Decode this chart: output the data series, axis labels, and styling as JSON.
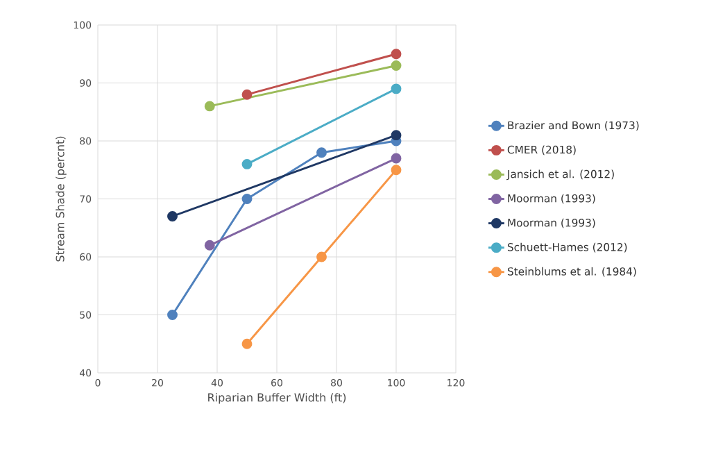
{
  "chart_data": {
    "type": "line",
    "xlabel": "Riparian Buffer Width (ft)",
    "ylabel": "Stream Shade (percnt)",
    "xlim": [
      0,
      120
    ],
    "xticks": [
      0,
      20,
      40,
      60,
      80,
      100,
      120
    ],
    "ylim": [
      40,
      100
    ],
    "yticks": [
      40,
      50,
      60,
      70,
      80,
      90,
      100
    ],
    "grid": true,
    "legend": "right",
    "marker": "circle",
    "line_style": "solid",
    "series": [
      {
        "name": "Brazier and Bown (1973)",
        "color": "#4f81bd",
        "x": [
          25,
          50,
          75,
          100
        ],
        "values": [
          50,
          70,
          78,
          80
        ]
      },
      {
        "name": "CMER (2018)",
        "color": "#c0504d",
        "x": [
          50,
          100
        ],
        "values": [
          88,
          95
        ]
      },
      {
        "name": "Jansich et al. (2012)",
        "color": "#9bbb59",
        "x": [
          37.5,
          100
        ],
        "values": [
          86,
          93
        ]
      },
      {
        "name": "Moorman (1993)",
        "color": "#8064a2",
        "x": [
          37.5,
          100
        ],
        "values": [
          62,
          77
        ]
      },
      {
        "name": "Moorman (1993)",
        "color": "#1f3864",
        "x": [
          25,
          100
        ],
        "values": [
          67,
          81
        ]
      },
      {
        "name": "Schuett-Hames (2012)",
        "color": "#4bacc6",
        "x": [
          50,
          100
        ],
        "values": [
          76,
          89
        ]
      },
      {
        "name": "Steinblums et al. (1984)",
        "color": "#f79646",
        "x": [
          50,
          75,
          100
        ],
        "values": [
          45,
          60,
          75
        ]
      }
    ]
  }
}
